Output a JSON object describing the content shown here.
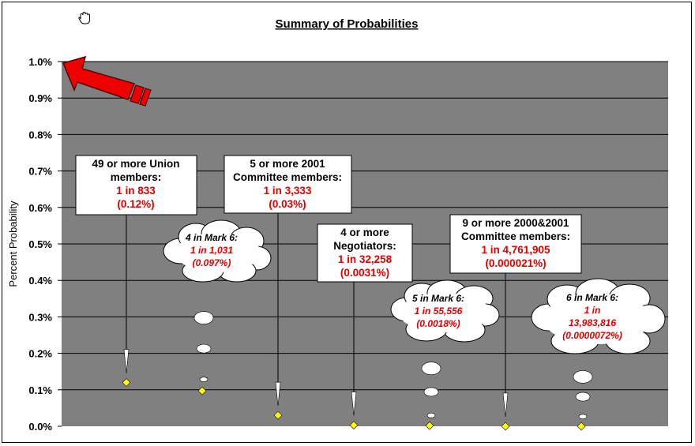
{
  "chart_data": {
    "type": "scatter",
    "title": "Summary of Probabilities",
    "ylabel": "Percent Probability",
    "xlabel": "",
    "ylim": [
      0,
      1.0
    ],
    "yticks": [
      "0.0%",
      "0.1%",
      "0.2%",
      "0.3%",
      "0.4%",
      "0.5%",
      "0.6%",
      "0.7%",
      "0.8%",
      "0.9%",
      "1.0%"
    ],
    "grid": true,
    "background_color": "#808080",
    "marker_color": "#ffff00",
    "points": [
      {
        "value": 0.12
      },
      {
        "value": 0.097
      },
      {
        "value": 0.03
      },
      {
        "value": 0.0031
      },
      {
        "value": 0.0018
      },
      {
        "value": 2.1e-05
      },
      {
        "value": 7.2e-06
      }
    ],
    "annotations": [
      {
        "kind": "box",
        "lines": [
          "49 or more Union",
          "members:"
        ],
        "red_lines": [
          "1 in 833",
          "(0.12%)"
        ]
      },
      {
        "kind": "cloud",
        "lines": [
          "4 in Mark 6:"
        ],
        "red_lines": [
          "1 in 1,031",
          "(0.097%)"
        ]
      },
      {
        "kind": "box",
        "lines": [
          "5 or more 2001",
          "Committee members:"
        ],
        "red_lines": [
          "1 in 3,333",
          "(0.03%)"
        ]
      },
      {
        "kind": "box",
        "lines": [
          "4 or more",
          "Negotiators:"
        ],
        "red_lines": [
          "1 in 32,258",
          "(0.0031%)"
        ]
      },
      {
        "kind": "cloud",
        "lines": [
          "5 in Mark 6:"
        ],
        "red_lines": [
          "1 in 55,556",
          "(0.0018%)"
        ]
      },
      {
        "kind": "box",
        "lines": [
          "9 or more 2000&2001",
          "Committee members:"
        ],
        "red_lines": [
          "1 in 4,761,905",
          "(0.000021%)"
        ]
      },
      {
        "kind": "cloud",
        "lines": [
          "6 in Mark 6:"
        ],
        "red_lines": [
          "1 in",
          "13,983,816",
          "(0.0000072%)"
        ]
      }
    ]
  },
  "icons": {
    "cursor": "hand-cursor-icon",
    "arrow": "red-arrow-icon",
    "arrow_color": "#ee0000"
  }
}
